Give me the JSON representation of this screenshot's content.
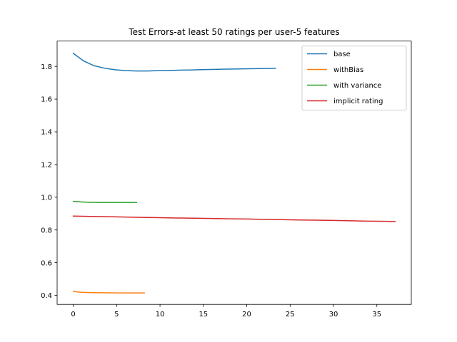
{
  "chart_data": {
    "type": "line",
    "title": "Test Errors-at least 50 ratings per user-5 features",
    "xlabel": "",
    "ylabel": "",
    "xlim": [
      -1.86,
      38.97
    ],
    "ylim": [
      0.345,
      1.955
    ],
    "xticks": [
      0,
      5,
      10,
      15,
      20,
      25,
      30,
      35
    ],
    "yticks": [
      0.4,
      0.6,
      0.8,
      1.0,
      1.2,
      1.4,
      1.6,
      1.8
    ],
    "ytick_labels": [
      "0.4",
      "0.6",
      "0.8",
      "1.0",
      "1.2",
      "1.4",
      "1.6",
      "1.8"
    ],
    "grid": false,
    "legend_position": "upper-right",
    "series": [
      {
        "name": "base",
        "color": "#1f77b4",
        "x": [
          0,
          1.2,
          2.4,
          3.7,
          4.9,
          6.1,
          7.3,
          8.6,
          9.8,
          11.0,
          12.2,
          13.5,
          14.7,
          15.9,
          17.1,
          18.4,
          19.6,
          20.8,
          22.0,
          23.3
        ],
        "y": [
          1.88,
          1.833,
          1.804,
          1.788,
          1.779,
          1.774,
          1.772,
          1.772,
          1.774,
          1.775,
          1.777,
          1.778,
          1.78,
          1.781,
          1.783,
          1.784,
          1.785,
          1.786,
          1.787,
          1.788
        ]
      },
      {
        "name": "withBias",
        "color": "#ff7f0e",
        "x": [
          0,
          0.5,
          1,
          1.5,
          2,
          2.5,
          3,
          3.5,
          4,
          4.5,
          5,
          5.5,
          6,
          6.5,
          7,
          7.5,
          8,
          8.2
        ],
        "y": [
          0.425,
          0.421,
          0.419,
          0.418,
          0.417,
          0.4165,
          0.416,
          0.416,
          0.4155,
          0.4155,
          0.415,
          0.415,
          0.415,
          0.415,
          0.415,
          0.415,
          0.415,
          0.415
        ]
      },
      {
        "name": "with variance",
        "color": "#2ca02c",
        "x": [
          0,
          0.5,
          1,
          1.5,
          2,
          2.5,
          3,
          3.5,
          4,
          4.5,
          5,
          5.5,
          6,
          6.5,
          7,
          7.3
        ],
        "y": [
          0.975,
          0.973,
          0.971,
          0.97,
          0.969,
          0.969,
          0.9685,
          0.968,
          0.968,
          0.968,
          0.968,
          0.968,
          0.968,
          0.968,
          0.968,
          0.968
        ]
      },
      {
        "name": "implicit rating",
        "color": "#d62728",
        "x": [
          0,
          2,
          4,
          6,
          8,
          10,
          12,
          14,
          16,
          18,
          20,
          22,
          24,
          26,
          28,
          30,
          32,
          34,
          36,
          37.1
        ],
        "y": [
          0.885,
          0.883,
          0.881,
          0.879,
          0.877,
          0.875,
          0.873,
          0.872,
          0.87,
          0.868,
          0.867,
          0.865,
          0.863,
          0.861,
          0.86,
          0.858,
          0.856,
          0.854,
          0.853,
          0.852
        ]
      }
    ]
  }
}
